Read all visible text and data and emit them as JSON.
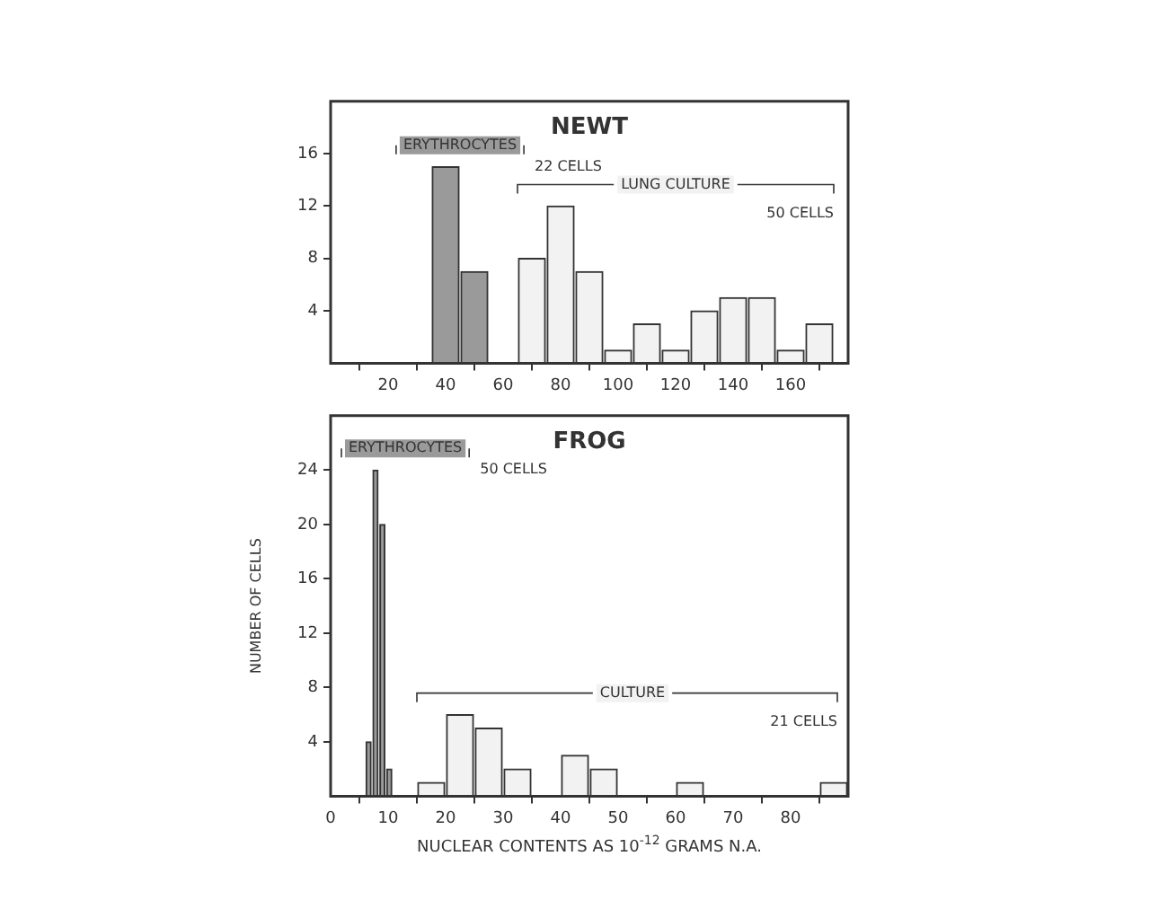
{
  "chart_data": [
    {
      "type": "histogram",
      "title": "NEWT",
      "xlim": [
        0,
        180
      ],
      "xticks": [
        20,
        40,
        60,
        80,
        100,
        120,
        140,
        160
      ],
      "ylim": [
        0,
        20
      ],
      "yticks": [
        4,
        8,
        12,
        16
      ],
      "grid": false,
      "bins": [
        35,
        45,
        55,
        65,
        75,
        85,
        95,
        105,
        115,
        125,
        135,
        145,
        155,
        165,
        175
      ],
      "series": [
        {
          "name": "ERYTHROCYTES",
          "color": "#9a9a9a",
          "values": [
            15,
            7,
            null,
            null,
            null,
            null,
            null,
            null,
            null,
            null,
            null,
            null,
            null,
            null
          ]
        },
        {
          "name": "LUNG CULTURE",
          "color": "#f2f2f2",
          "values": [
            null,
            null,
            null,
            8,
            12,
            7,
            1,
            3,
            1,
            4,
            5,
            5,
            1,
            3
          ]
        }
      ],
      "annotations": [
        "22 CELLS",
        "50 CELLS"
      ]
    },
    {
      "type": "histogram",
      "title": "FROG",
      "xlabel": "NUCLEAR CONTENTS AS 10$^{-12}$ GRAMS N.A.",
      "ylabel": "NUMBER OF CELLS",
      "xlim": [
        0,
        90
      ],
      "xticks": [
        0,
        10,
        20,
        30,
        40,
        50,
        60,
        70,
        80
      ],
      "ylim": [
        0,
        28
      ],
      "yticks": [
        4,
        8,
        12,
        16,
        20,
        24
      ],
      "grid": false,
      "bins": [
        6,
        7.2,
        8.4,
        9.6,
        10.8,
        15,
        20,
        25,
        30,
        35,
        40,
        45,
        50,
        55,
        60,
        65,
        70,
        75,
        80,
        85,
        90
      ],
      "series": [
        {
          "name": "ERYTHROCYTES",
          "color": "#9a9a9a",
          "values": [
            4,
            24,
            20,
            2,
            null,
            null,
            null,
            null,
            null,
            null,
            null,
            null,
            null,
            null,
            null,
            null,
            null,
            null,
            null,
            null
          ]
        },
        {
          "name": "CULTURE",
          "color": "#f2f2f2",
          "values": [
            null,
            null,
            null,
            null,
            null,
            1,
            6,
            5,
            2,
            0,
            3,
            2,
            0,
            0,
            1,
            0,
            0,
            0,
            0,
            1
          ]
        }
      ],
      "annotations": [
        "50 CELLS",
        "21 CELLS"
      ]
    }
  ]
}
